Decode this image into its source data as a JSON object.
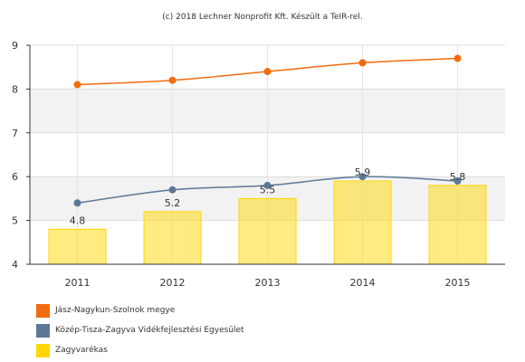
{
  "header": {
    "copyright": "(c) 2018 Lechner Nonprofit Kft. Készült a TeIR-rel."
  },
  "chart_data": {
    "type": "bar",
    "categories": [
      "2011",
      "2012",
      "2013",
      "2014",
      "2015"
    ],
    "ylim": [
      4,
      9
    ],
    "y_ticks": [
      4,
      5,
      6,
      7,
      8,
      9
    ],
    "grid": "horizontal and vertical",
    "legend_position": "bottom-left",
    "series": [
      {
        "name": "Jász-Nagykun-Szolnok megye",
        "type": "line",
        "color": "#f26c0f",
        "values": [
          8.1,
          8.2,
          8.4,
          8.6,
          8.7
        ],
        "data_labels": false
      },
      {
        "name": "Közép-Tisza-Zagyva Vidékfejlesztési Egyesület",
        "type": "line",
        "color": "#5c7896",
        "values": [
          5.4,
          5.7,
          5.8,
          6.0,
          5.9
        ],
        "data_labels": false
      },
      {
        "name": "Zagyvarékas",
        "type": "bar",
        "color": "#ffd700",
        "values": [
          4.8,
          5.2,
          5.5,
          5.9,
          5.8
        ],
        "data_labels": true,
        "value_labels": [
          "4.8",
          "5.2",
          "5.5",
          "5.9",
          "5.8"
        ]
      }
    ]
  },
  "legend": {
    "items": [
      {
        "label": "Jász-Nagykun-Szolnok megye",
        "color": "#f26c0f"
      },
      {
        "label": "Közép-Tisza-Zagyva Vidékfejlesztési Egyesület",
        "color": "#5c7896"
      },
      {
        "label": "Zagyvarékas",
        "color": "#ffd700"
      }
    ]
  }
}
